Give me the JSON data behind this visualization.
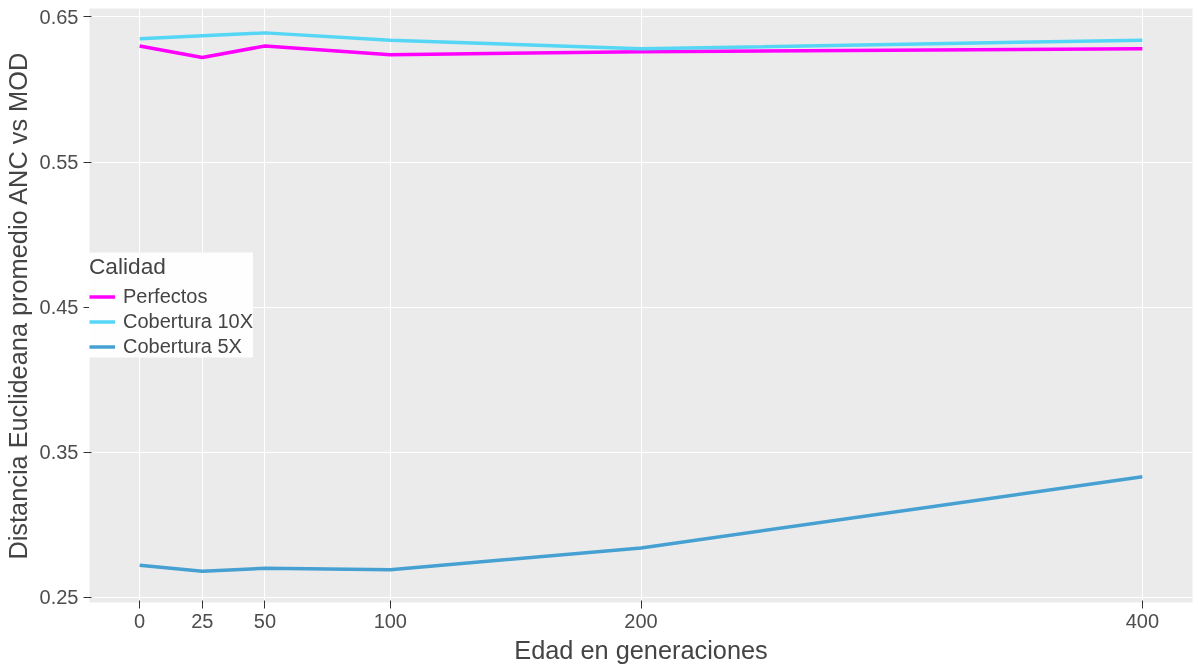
{
  "chart_data": {
    "type": "line",
    "xlabel": "Edad en generaciones",
    "ylabel": "Distancia Euclideana promedio ANC vs MOD",
    "legend_title": "Calidad",
    "x": [
      0,
      25,
      50,
      100,
      200,
      400
    ],
    "series": [
      {
        "name": "Perfectos",
        "color": "#ff00ff",
        "values": [
          0.63,
          0.622,
          0.63,
          0.624,
          0.626,
          0.628
        ]
      },
      {
        "name": "Cobertura 10X",
        "color": "#55d6f5",
        "values": [
          0.635,
          0.637,
          0.639,
          0.634,
          0.628,
          0.634
        ]
      },
      {
        "name": "Cobertura 5X",
        "color": "#46a0d2",
        "values": [
          0.272,
          0.268,
          0.27,
          0.269,
          0.284,
          0.333
        ]
      }
    ],
    "xlim": [
      -20,
      420
    ],
    "xticks": [
      0,
      25,
      50,
      100,
      200,
      400
    ],
    "ylim": [
      0.2464,
      0.6558
    ],
    "yticks": [
      0.25,
      0.35,
      0.45,
      0.55,
      0.65
    ],
    "grid": true,
    "legend": "left",
    "marker": "none",
    "line_style": "solid"
  }
}
